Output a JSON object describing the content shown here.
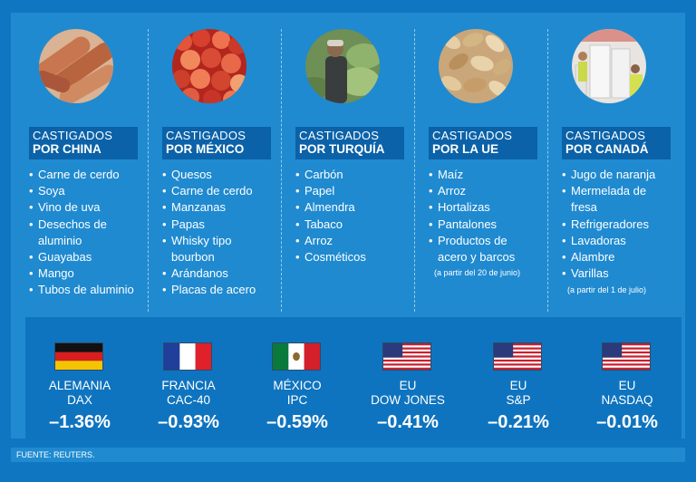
{
  "columns": [
    {
      "line1": "CASTIGADOS",
      "line2": "POR CHINA",
      "items": [
        "Carne de cerdo",
        "Soya",
        "Vino de uva",
        "Desechos de aluminio",
        "Guayabas",
        "Mango",
        "Tubos de aluminio"
      ],
      "photo": "sausages-photo"
    },
    {
      "line1": "CASTIGADOS",
      "line2": "POR MÉXICO",
      "items": [
        "Quesos",
        "Carne de cerdo",
        "Manzanas",
        "Papas",
        "Whisky tipo bourbon",
        "Arándanos",
        "Placas de acero"
      ],
      "photo": "apples-photo"
    },
    {
      "line1": "CASTIGADOS",
      "line2": "POR TURQUÍA",
      "items": [
        "Carbón",
        "Papel",
        "Almendra",
        "Tabaco",
        "Arroz",
        "Cosméticos"
      ],
      "photo": "tobacco-farmer-photo"
    },
    {
      "line1": "CASTIGADOS",
      "line2": "POR LA UE",
      "items": [
        "Maíz",
        "Arroz",
        "Hortalizas",
        "Pantalones",
        "Productos de acero y barcos"
      ],
      "note": "(a partir del 20 de junio)",
      "photo": "peanuts-photo"
    },
    {
      "line1": "CASTIGADOS",
      "line2": "POR CANADÁ",
      "items": [
        "Jugo de naranja",
        "Mermelada de fresa",
        "Refrigeradores",
        "Lavadoras",
        "Alambre",
        "Varillas"
      ],
      "note": "(a partir del 1 de julio)",
      "photo": "appliances-photo"
    }
  ],
  "markets": [
    {
      "line1": "ALEMANIA",
      "line2": "DAX",
      "value": "–1.36%",
      "flag": "germany-flag"
    },
    {
      "line1": "FRANCIA",
      "line2": "CAC-40",
      "value": "–0.93%",
      "flag": "france-flag"
    },
    {
      "line1": "MÉXICO",
      "line2": "IPC",
      "value": "–0.59%",
      "flag": "mexico-flag"
    },
    {
      "line1": "EU",
      "line2": "DOW JONES",
      "value": "–0.41%",
      "flag": "usa-flag"
    },
    {
      "line1": "EU",
      "line2": "S&P",
      "value": "–0.21%",
      "flag": "usa-flag"
    },
    {
      "line1": "EU",
      "line2": "NASDAQ",
      "value": "–0.01%",
      "flag": "usa-flag"
    }
  ],
  "footer": "FUENTE: REUTERS."
}
